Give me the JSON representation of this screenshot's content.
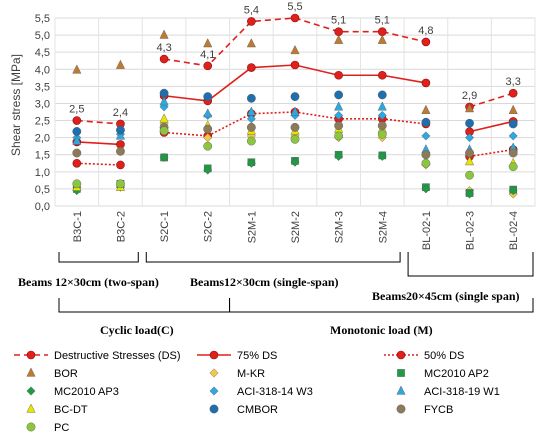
{
  "chart_data": {
    "type": "scatter",
    "ylabel": "Shear stress [MPa]",
    "ylim": [
      0,
      5.5
    ],
    "yticks": [
      "0,0",
      "0,5",
      "1,0",
      "1,5",
      "2,0",
      "2,5",
      "3,0",
      "3,5",
      "4,0",
      "4,5",
      "5,0",
      "5,5"
    ],
    "categories": [
      "B3C-1",
      "B3C-2",
      "S2C-1",
      "S2C-2",
      "S2M-1",
      "S2M-2",
      "S2M-3",
      "S2M-4",
      "BL-02-1",
      "BL-02-3",
      "BL-02-4"
    ],
    "line_groups": [
      [
        0,
        1
      ],
      [
        2,
        3,
        4,
        5,
        6,
        7,
        8
      ],
      [
        9,
        10
      ]
    ],
    "grid": true,
    "series": [
      {
        "name": "Destructive Stresses (DS)",
        "kind": "line",
        "dash": "6,4",
        "color": "#e0201b",
        "values": [
          2.5,
          2.4,
          4.3,
          4.1,
          5.4,
          5.5,
          5.1,
          5.1,
          4.8,
          2.9,
          3.3
        ]
      },
      {
        "name": "75% DS",
        "kind": "line",
        "dash": "",
        "color": "#e0201b",
        "values": [
          1.875,
          1.8,
          3.225,
          3.075,
          4.05,
          4.125,
          3.825,
          3.825,
          3.6,
          2.175,
          2.475
        ]
      },
      {
        "name": "50% DS",
        "kind": "line",
        "dash": "2,2",
        "color": "#e0201b",
        "values": [
          1.25,
          1.2,
          2.15,
          2.05,
          2.7,
          2.75,
          2.55,
          2.55,
          2.4,
          1.45,
          1.65
        ]
      },
      {
        "name": "BOR",
        "marker": "triangle",
        "color": "#c07a30",
        "values": [
          3.98,
          4.12,
          5.0,
          4.75,
          4.75,
          4.55,
          4.85,
          4.85,
          2.8,
          2.85,
          2.8
        ]
      },
      {
        "name": "M-KR",
        "marker": "diamond",
        "color": "#f2c744",
        "values": [
          0.55,
          0.6,
          2.4,
          2.0,
          2.05,
          2.05,
          2.0,
          2.0,
          1.2,
          0.45,
          0.35
        ]
      },
      {
        "name": "MC2010 AP2",
        "marker": "square",
        "color": "#1f9a45",
        "values": [
          0.5,
          0.65,
          1.42,
          1.1,
          1.28,
          1.32,
          1.5,
          1.48,
          0.55,
          0.38,
          0.48
        ]
      },
      {
        "name": "MC2010 AP3",
        "marker": "diamond",
        "color": "#1f9a45",
        "values": [
          0.45,
          0.55,
          1.42,
          1.05,
          1.25,
          1.28,
          1.45,
          1.45,
          0.5,
          0.35,
          0.45
        ]
      },
      {
        "name": "ACI-318-14 W3",
        "marker": "diamond",
        "color": "#2ea8e0",
        "values": [
          2.0,
          2.1,
          2.9,
          2.65,
          2.55,
          2.65,
          2.65,
          2.65,
          2.05,
          2.0,
          2.05
        ]
      },
      {
        "name": "ACI-318-19 W1",
        "marker": "triangle",
        "color": "#2ea8e0",
        "values": [
          1.9,
          2.05,
          3.05,
          2.7,
          2.75,
          2.75,
          2.9,
          2.9,
          1.65,
          1.65,
          1.7
        ]
      },
      {
        "name": "BC-DT",
        "marker": "triangle",
        "color": "#e6e600",
        "values": [
          0.55,
          0.55,
          2.55,
          2.35,
          2.2,
          2.2,
          2.25,
          2.25,
          1.3,
          1.3,
          1.25
        ]
      },
      {
        "name": "CMBOR",
        "marker": "circle",
        "color": "#1f6faf",
        "values": [
          2.18,
          2.22,
          3.3,
          3.2,
          3.15,
          3.2,
          3.25,
          3.25,
          2.45,
          2.42,
          2.4
        ]
      },
      {
        "name": "FYCB",
        "marker": "circle",
        "color": "#8c7a5a",
        "values": [
          1.55,
          1.6,
          2.3,
          2.25,
          2.3,
          2.3,
          2.35,
          2.35,
          1.5,
          1.55,
          1.55
        ]
      },
      {
        "name": "PC",
        "marker": "circle",
        "color": "#8cc63f",
        "values": [
          0.65,
          0.65,
          2.2,
          1.75,
          1.9,
          1.95,
          2.05,
          2.1,
          1.25,
          0.9,
          1.15
        ]
      }
    ],
    "data_labels": [
      "2,5",
      "2,4",
      "4,3",
      "4,1",
      "5,4",
      "5,5",
      "5,1",
      "5,1",
      "4,8",
      "2,9",
      "3,3"
    ],
    "group_labels": {
      "two_span": "Beams 12×30cm (two-span)",
      "single_span_12": "Beams12×30cm (single-span)",
      "single_span_20": "Beams20×45cm (single span)",
      "cyclic": "Cyclic load(C)",
      "monotonic": "Monotonic load (M)"
    },
    "legend_placement": "bottom"
  }
}
